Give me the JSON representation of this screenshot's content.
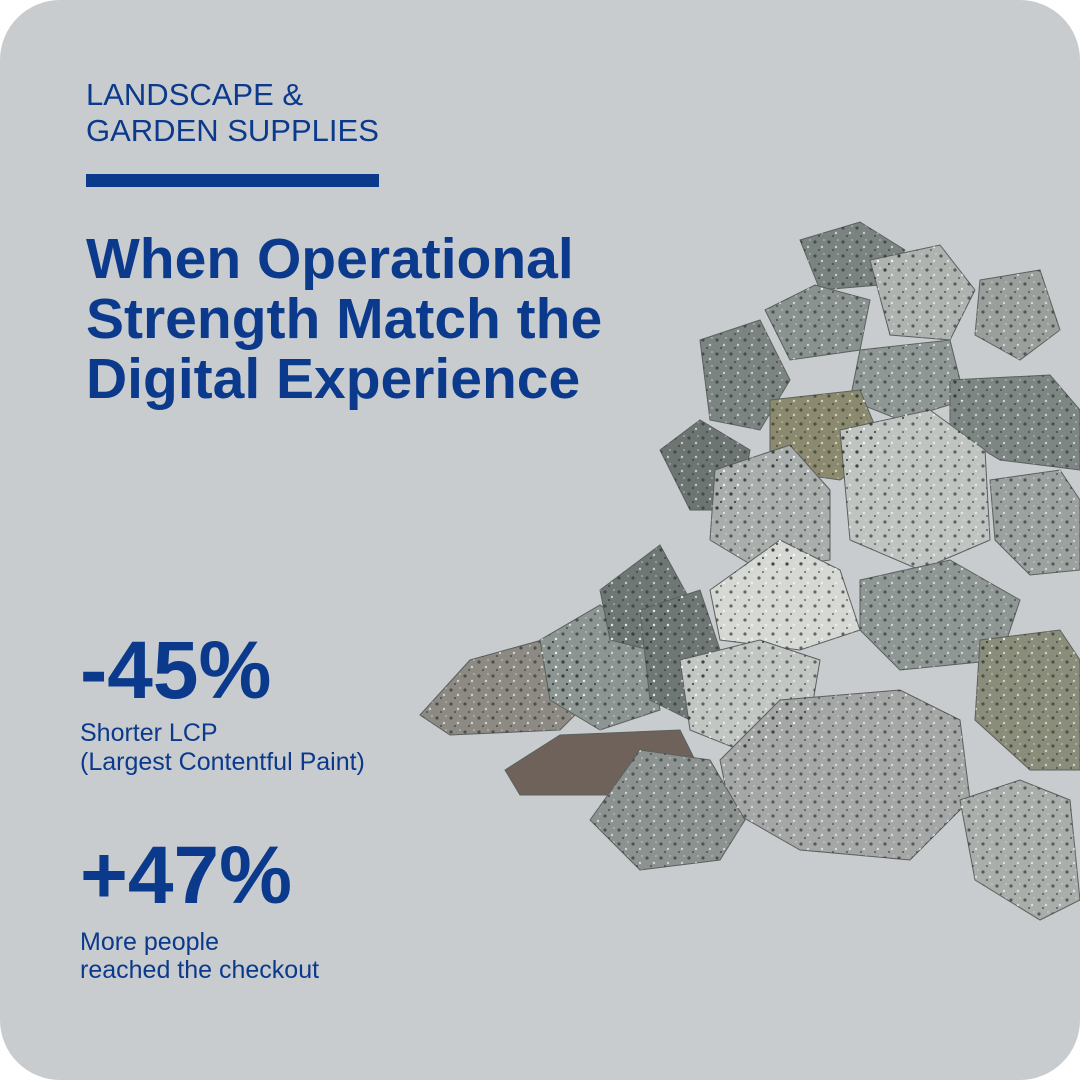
{
  "header": {
    "category_lines": [
      "LANDSCAPE &",
      "GARDEN SUPPLIES"
    ],
    "title_lines": [
      "When Operational",
      "Strength Match the",
      "Digital Experience"
    ]
  },
  "stats": [
    {
      "value": "-45%",
      "label_lines": [
        "Shorter LCP",
        "(Largest Contentful Paint)"
      ]
    },
    {
      "value": "+47%",
      "label_lines": [
        "More people",
        "reached the checkout"
      ]
    }
  ]
}
